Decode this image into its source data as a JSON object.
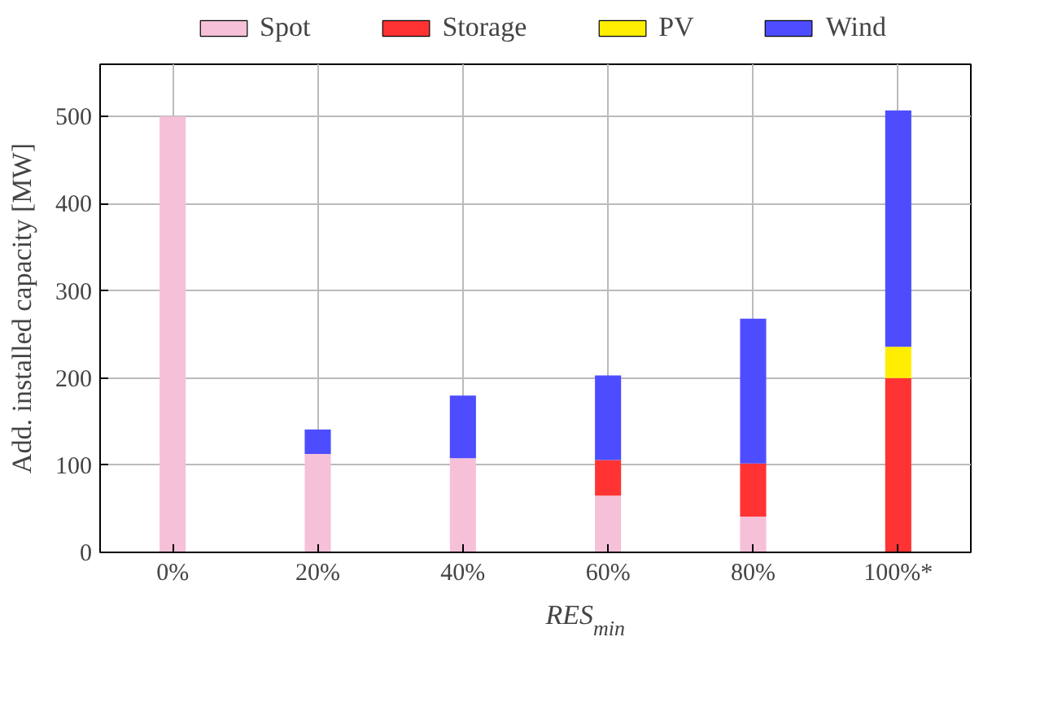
{
  "chart_data": {
    "type": "bar",
    "stacked": true,
    "categories": [
      "0%",
      "20%",
      "40%",
      "60%",
      "80%",
      "100%*"
    ],
    "xlabel": "RES$_{min}$",
    "ylabel": "Add. installed capacity [MW]",
    "ylim": [
      0,
      560
    ],
    "yticks": [
      0,
      100,
      200,
      300,
      400,
      500
    ],
    "grid": true,
    "legend": "top",
    "series": [
      {
        "name": "Spot",
        "color": "#f5c0d8",
        "values": [
          500,
          113,
          108,
          65,
          41,
          0
        ]
      },
      {
        "name": "Storage",
        "color": "#ff3333",
        "values": [
          0,
          0,
          0,
          41,
          61,
          200
        ]
      },
      {
        "name": "PV",
        "color": "#ffee00",
        "values": [
          0,
          0,
          0,
          0,
          0,
          36
        ]
      },
      {
        "name": "Wind",
        "color": "#4d4dff",
        "values": [
          0,
          28,
          72,
          97,
          166,
          271
        ]
      }
    ]
  }
}
